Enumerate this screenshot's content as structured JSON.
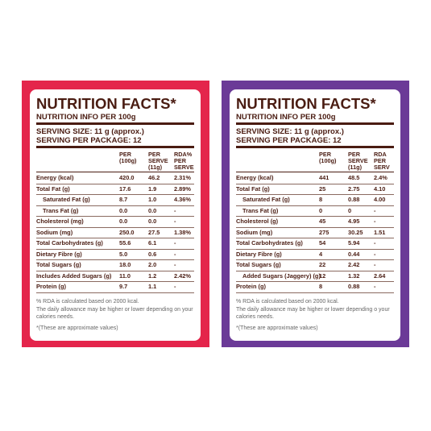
{
  "panels": [
    {
      "title": "NUTRITION FACTS*",
      "subtitle": "NUTRITION INFO PER 100g",
      "serving_size": "SERVING SIZE: 11 g (approx.)",
      "serving_package": "SERVING PER PACKAGE: 12",
      "headers": [
        [
          "PER",
          "(100g)"
        ],
        [
          "PER",
          "SERVE",
          "(11g)"
        ],
        [
          "RDA%",
          "PER",
          "SERVE"
        ]
      ],
      "rows": [
        [
          "Energy (kcal)",
          "420.0",
          "46.2",
          "2.31%"
        ],
        [
          "Total Fat (g)",
          "17.6",
          "1.9",
          "2.89%"
        ],
        [
          "Saturated Fat (g)",
          "8.7",
          "1.0",
          "4.36%"
        ],
        [
          "Trans Fat (g)",
          "0.0",
          "0.0",
          "-"
        ],
        [
          "Cholesterol (mg)",
          "0.0",
          "0.0",
          "-"
        ],
        [
          "Sodium (mg)",
          "250.0",
          "27.5",
          "1.38%"
        ],
        [
          "Total Carbohydrates (g)",
          "55.6",
          "6.1",
          "-"
        ],
        [
          "Dietary Fibre (g)",
          "5.0",
          "0.6",
          "-"
        ],
        [
          "Total Sugars (g)",
          "18.0",
          "2.0",
          "-"
        ],
        [
          "Includes Added Sugars (g)",
          "11.0",
          "1.2",
          "2.42%"
        ],
        [
          "Protein (g)",
          "9.7",
          "1.1",
          "-"
        ]
      ],
      "notes": [
        "% RDA is calculated based on 2000 kcal.",
        "The daily allowance may be higher or lower depending on your calories needs."
      ],
      "footnote": "*(These are approximate values)"
    },
    {
      "title": "NUTRITION FACTS*",
      "subtitle": "NUTRITION INFO PER 100g",
      "serving_size": "SERVING SIZE: 11 g (approx.)",
      "serving_package": "SERVING PER PACKAGE: 12",
      "headers": [
        [
          "PER",
          "(100g)"
        ],
        [
          "PER",
          "SERVE",
          "(11g)"
        ],
        [
          "RDA",
          "PER",
          "SERV"
        ]
      ],
      "rows": [
        [
          "Energy (kcal)",
          "441",
          "48.5",
          "2.4%"
        ],
        [
          "Total Fat (g)",
          "25",
          "2.75",
          "4.10"
        ],
        [
          "Saturated Fat (g)",
          "8",
          "0.88",
          "4.00"
        ],
        [
          "Trans Fat (g)",
          "0",
          "0",
          "-"
        ],
        [
          "Cholesterol (g)",
          "45",
          "4.95",
          "-"
        ],
        [
          "Sodium (mg)",
          "275",
          "30.25",
          "1.51"
        ],
        [
          "Total Carbohydrates (g)",
          "54",
          "5.94",
          "-"
        ],
        [
          "Dietary Fibre (g)",
          "4",
          "0.44",
          "-"
        ],
        [
          "Total Sugars (g)",
          "22",
          "2.42",
          "-"
        ],
        [
          "Added Sugars (Jaggery) (g)",
          "12",
          "1.32",
          "2.64"
        ],
        [
          "Protein (g)",
          "8",
          "0.88",
          "-"
        ]
      ],
      "notes": [
        "% RDA is calculated based on 2000 kcal.",
        "The daily allowance may be higher or lower depending o your calories needs."
      ],
      "footnote": "*(These are approximate values)"
    }
  ]
}
